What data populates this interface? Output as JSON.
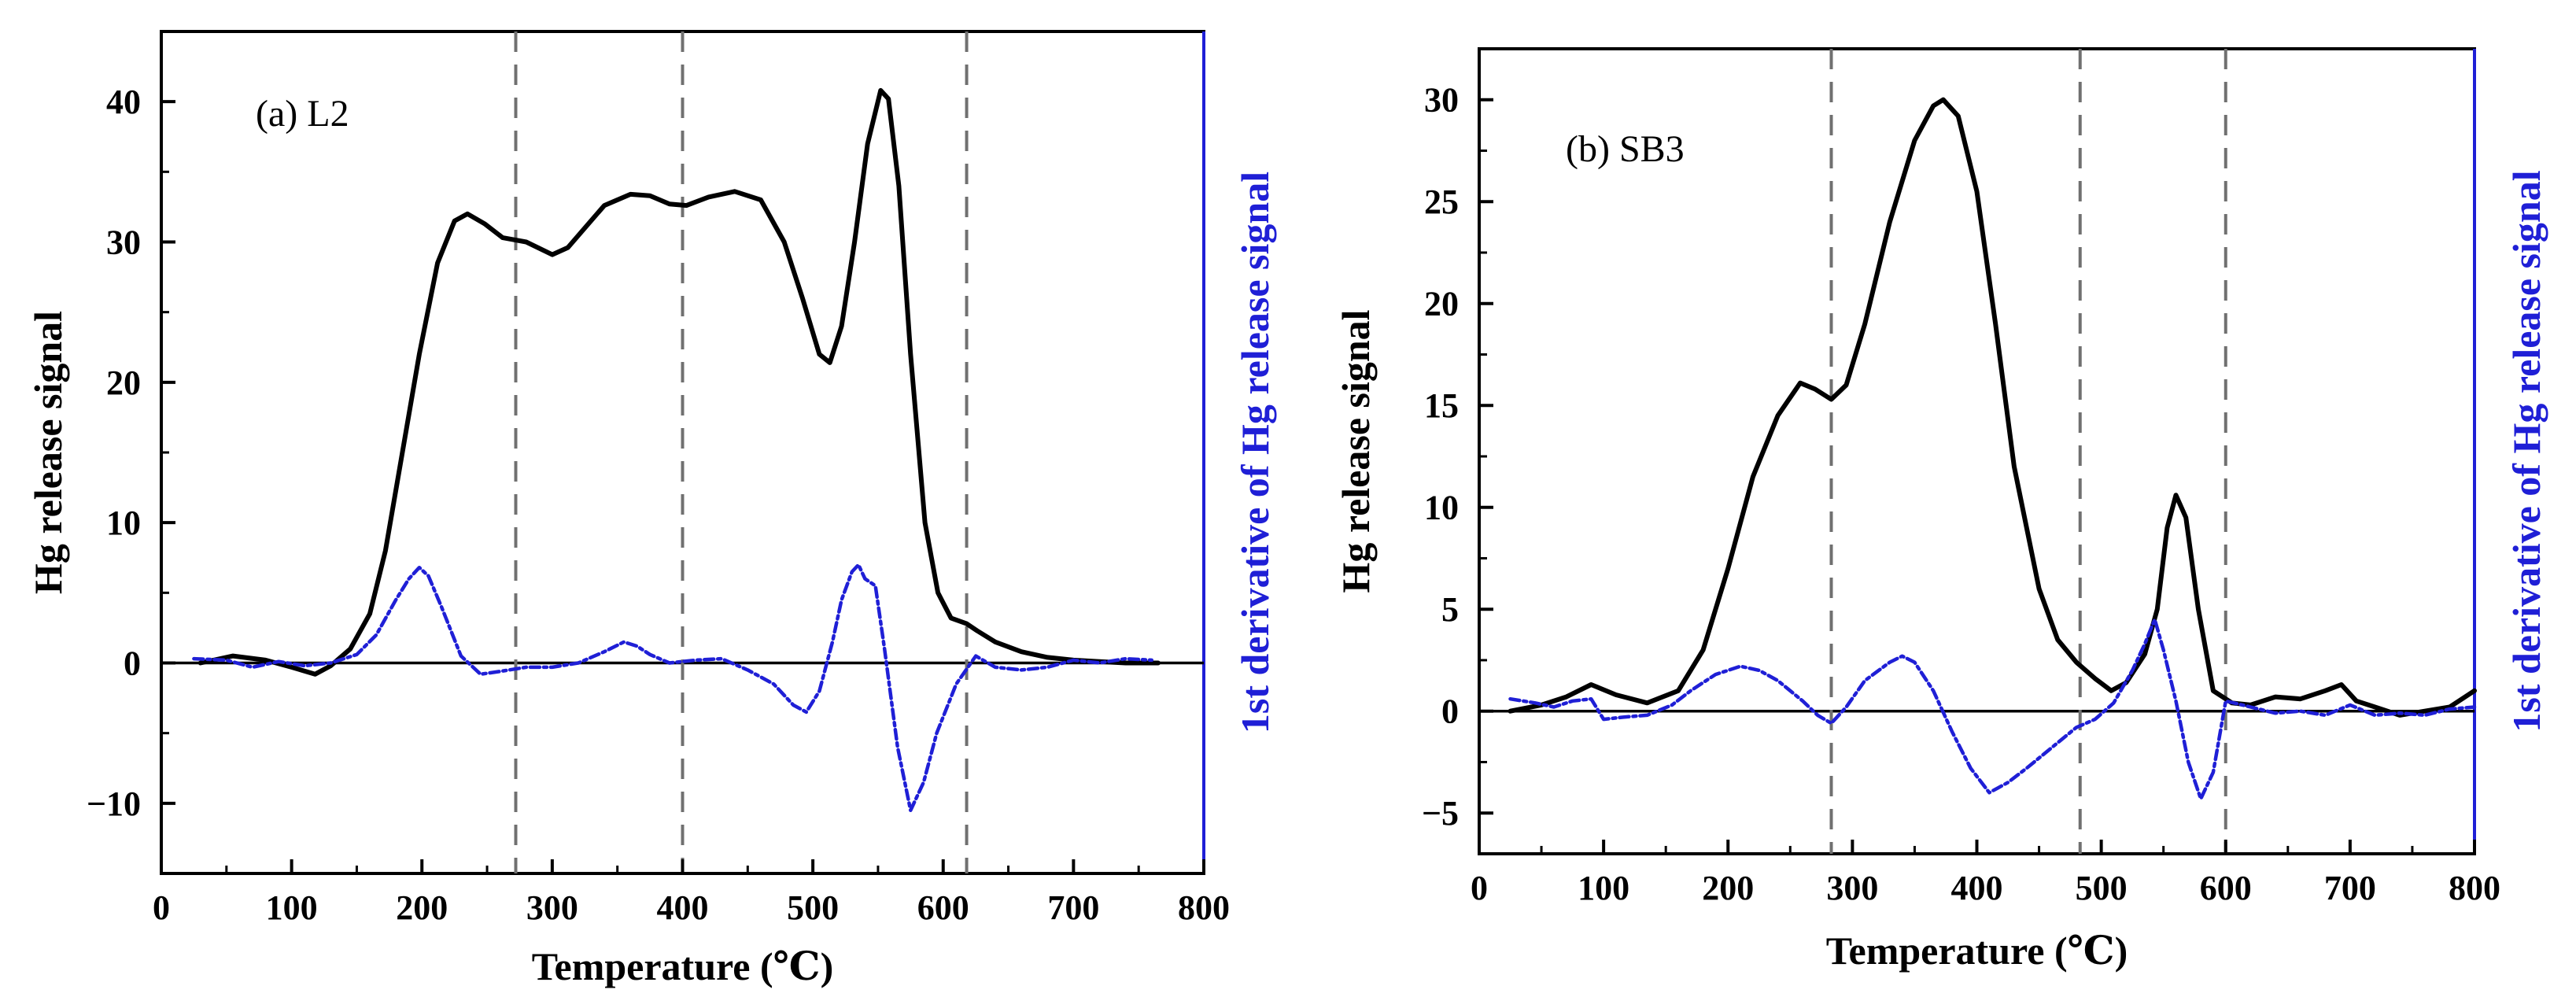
{
  "colors": {
    "signal_line": "#000000",
    "derivative_line": "#1f1fd6",
    "right_axis": "#1f1fd6",
    "dashed_lines": "#707070"
  },
  "chart_data": [
    {
      "type": "line",
      "panel_label": "(a) L2",
      "xlabel": "Temperature (℃)",
      "ylabel": "Hg release signal",
      "ylabel_right": "1st derivative of Hg release signal",
      "xlim": [
        0,
        800
      ],
      "ylim": [
        -15,
        45
      ],
      "xticks": [
        0,
        100,
        200,
        300,
        400,
        500,
        600,
        700,
        800
      ],
      "yticks": [
        -10,
        0,
        10,
        20,
        30,
        40
      ],
      "ytick_labels": [
        "−10",
        "0",
        "10",
        "20",
        "30",
        "40"
      ],
      "vertical_dashed_lines": [
        272,
        400,
        618
      ],
      "zero_line": 0,
      "series": [
        {
          "name": "Hg release signal",
          "style": "solid",
          "x": [
            30,
            55,
            80,
            100,
            118,
            130,
            145,
            160,
            172,
            185,
            198,
            212,
            225,
            235,
            248,
            262,
            280,
            300,
            312,
            325,
            340,
            360,
            375,
            390,
            403,
            420,
            440,
            460,
            478,
            492,
            505,
            513,
            522,
            532,
            542,
            552,
            558,
            566,
            575,
            586,
            596,
            606,
            618,
            626,
            640,
            660,
            680,
            700,
            720,
            740,
            765
          ],
          "values": [
            0,
            0.5,
            0.2,
            -0.3,
            -0.8,
            -0.2,
            1.0,
            3.5,
            8.0,
            15.0,
            22.0,
            28.5,
            31.5,
            32.0,
            31.3,
            30.3,
            30.0,
            29.1,
            29.6,
            31.0,
            32.6,
            33.4,
            33.3,
            32.7,
            32.6,
            33.2,
            33.6,
            33.0,
            30.0,
            26.0,
            22.0,
            21.4,
            24.0,
            30.0,
            37.0,
            40.8,
            40.2,
            34.0,
            22.0,
            10.0,
            5.0,
            3.2,
            2.8,
            2.3,
            1.5,
            0.8,
            0.4,
            0.2,
            0.1,
            0.0,
            0.0
          ]
        },
        {
          "name": "1st derivative of Hg release signal",
          "style": "dashdot",
          "x": [
            25,
            50,
            70,
            90,
            110,
            130,
            150,
            165,
            180,
            190,
            198,
            205,
            215,
            230,
            245,
            260,
            280,
            300,
            320,
            340,
            355,
            365,
            375,
            390,
            410,
            430,
            450,
            470,
            485,
            495,
            505,
            515,
            522,
            530,
            535,
            540,
            548,
            555,
            565,
            575,
            585,
            595,
            610,
            625,
            640,
            660,
            680,
            700,
            720,
            740,
            760
          ],
          "values": [
            0.3,
            0.2,
            -0.3,
            0.1,
            -0.2,
            0.0,
            0.6,
            2.0,
            4.5,
            6.0,
            6.8,
            6.2,
            4.0,
            0.5,
            -0.8,
            -0.6,
            -0.3,
            -0.3,
            0.0,
            0.8,
            1.5,
            1.2,
            0.6,
            0.0,
            0.2,
            0.3,
            -0.5,
            -1.5,
            -3.0,
            -3.5,
            -2.0,
            1.5,
            4.5,
            6.5,
            7.0,
            6.0,
            5.5,
            1.0,
            -6.0,
            -10.5,
            -8.5,
            -5.0,
            -1.5,
            0.5,
            -0.3,
            -0.5,
            -0.3,
            0.2,
            0.0,
            0.3,
            0.2
          ]
        }
      ]
    },
    {
      "type": "line",
      "panel_label": "(b) SB3",
      "xlabel": "Temperature (℃)",
      "ylabel": "Hg release signal",
      "ylabel_right": "1st derivative of Hg release signal",
      "xlim": [
        0,
        800
      ],
      "ylim": [
        -7,
        32.5
      ],
      "xticks": [
        0,
        100,
        200,
        300,
        400,
        500,
        600,
        700,
        800
      ],
      "yticks": [
        -5,
        0,
        5,
        10,
        15,
        20,
        25,
        30
      ],
      "ytick_labels": [
        "−5",
        "0",
        "5",
        "10",
        "15",
        "20",
        "25",
        "30"
      ],
      "vertical_dashed_lines": [
        283,
        483,
        600
      ],
      "zero_line": 0,
      "series": [
        {
          "name": "Hg release signal",
          "style": "solid",
          "x": [
            25,
            50,
            70,
            90,
            110,
            135,
            160,
            180,
            200,
            220,
            240,
            258,
            270,
            283,
            295,
            310,
            330,
            350,
            365,
            373,
            385,
            400,
            415,
            430,
            450,
            465,
            480,
            495,
            508,
            520,
            535,
            545,
            553,
            560,
            568,
            578,
            590,
            605,
            620,
            640,
            660,
            680,
            693,
            705,
            720,
            740,
            760,
            780,
            800
          ],
          "values": [
            0,
            0.3,
            0.7,
            1.3,
            0.8,
            0.4,
            1.0,
            3.0,
            7.0,
            11.5,
            14.5,
            16.1,
            15.8,
            15.3,
            16.0,
            19.0,
            24.0,
            28.0,
            29.7,
            30.0,
            29.2,
            25.5,
            19.0,
            12.0,
            6.0,
            3.5,
            2.4,
            1.6,
            1.0,
            1.4,
            2.8,
            5.0,
            9.0,
            10.6,
            9.5,
            5.0,
            1.0,
            0.4,
            0.3,
            0.7,
            0.6,
            1.0,
            1.3,
            0.5,
            0.2,
            -0.2,
            0.0,
            0.2,
            1.0
          ]
        },
        {
          "name": "1st derivative of Hg release signal",
          "style": "dashdot",
          "x": [
            25,
            45,
            60,
            75,
            90,
            100,
            115,
            135,
            155,
            170,
            190,
            210,
            225,
            240,
            260,
            272,
            283,
            295,
            310,
            330,
            340,
            350,
            365,
            380,
            395,
            410,
            425,
            440,
            460,
            480,
            495,
            510,
            525,
            535,
            543,
            550,
            560,
            570,
            580,
            590,
            600,
            620,
            640,
            660,
            680,
            700,
            720,
            740,
            760,
            780,
            800
          ],
          "values": [
            0.6,
            0.4,
            0.2,
            0.5,
            0.6,
            -0.4,
            -0.3,
            -0.2,
            0.3,
            1.0,
            1.8,
            2.2,
            2.0,
            1.5,
            0.5,
            -0.2,
            -0.6,
            0.2,
            1.5,
            2.4,
            2.7,
            2.4,
            1.0,
            -1.0,
            -2.8,
            -4.0,
            -3.5,
            -2.8,
            -1.8,
            -0.8,
            -0.4,
            0.4,
            2.0,
            3.3,
            4.5,
            3.0,
            0.5,
            -2.5,
            -4.3,
            -3.0,
            0.5,
            0.2,
            -0.1,
            0.0,
            -0.2,
            0.3,
            -0.2,
            -0.1,
            -0.2,
            0.1,
            0.2
          ]
        }
      ]
    }
  ]
}
